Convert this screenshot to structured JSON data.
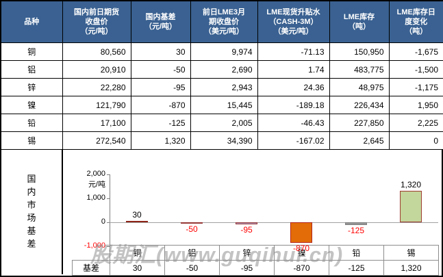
{
  "colors": {
    "header_bg": "#3A6191",
    "header_text": "#FFFFFF",
    "negative_text": "#FF0000",
    "grid_border": "#000000",
    "watermark": "#8E8E8E"
  },
  "price_table": {
    "headers": [
      "品种",
      "国内前日期货\n收盘价\n（元/吨）",
      "国内基差\n（元/吨）",
      "前日LME3月\n期收盘价\n（美元/吨）",
      "LME现货升贴水\n（CASH-3M）\n（美元/吨）",
      "LME库存\n（吨）",
      "LME库存日\n度变化\n（吨）"
    ],
    "rows": [
      {
        "cells": [
          "铜",
          "80,560",
          "30",
          "9,974",
          "-71.13",
          "150,950",
          "-1,675"
        ]
      },
      {
        "cells": [
          "铝",
          "20,910",
          "-50",
          "2,690",
          "1.74",
          "483,775",
          "-1,500"
        ]
      },
      {
        "cells": [
          "锌",
          "22,280",
          "-95",
          "2,943",
          "24.36",
          "48,975",
          "-1,175"
        ]
      },
      {
        "cells": [
          "镍",
          "121,790",
          "-870",
          "15,445",
          "-189.18",
          "226,434",
          "1,950"
        ]
      },
      {
        "cells": [
          "铅",
          "17,100",
          "-125",
          "2,005",
          "-46.43",
          "227,850",
          "2,225"
        ]
      },
      {
        "cells": [
          "锡",
          "272,540",
          "1,320",
          "34,390",
          "-167.02",
          "2,645",
          "0"
        ]
      }
    ]
  },
  "basis_section": {
    "side_label": "国内市场基差",
    "chart_data": {
      "type": "bar",
      "categories": [
        "铜",
        "铝",
        "锌",
        "镍",
        "铅",
        "锡"
      ],
      "series": [
        {
          "name": "基差",
          "values": [
            30,
            -50,
            -95,
            -870,
            -125,
            1320
          ]
        }
      ],
      "value_labels": [
        "30",
        "-50",
        "-95",
        "-870",
        "-125",
        "1,320"
      ],
      "ylabel": "元/吨",
      "yticks": [
        {
          "value": 2000,
          "label": "2,000"
        },
        {
          "value": 1000,
          "label": "1,000"
        },
        {
          "value": 0,
          "label": "0"
        },
        {
          "value": -1000,
          "label": "-1,000"
        }
      ],
      "ylim": [
        -1000,
        2000
      ],
      "grid": false,
      "legend_position": "data-table-row-header",
      "bar_fill_colors": [
        "#B02C1A",
        "#C0504D",
        "#B2A1C7",
        "#E36C09",
        "#969696",
        "#C3D69B"
      ],
      "bar_border_colors": [
        "#8E2318",
        "#953735",
        "#953735",
        "#B02318",
        "#7F7F7F",
        "#9E3B30"
      ]
    }
  },
  "watermark_text": "股期汇(www.guqihui.cn)"
}
